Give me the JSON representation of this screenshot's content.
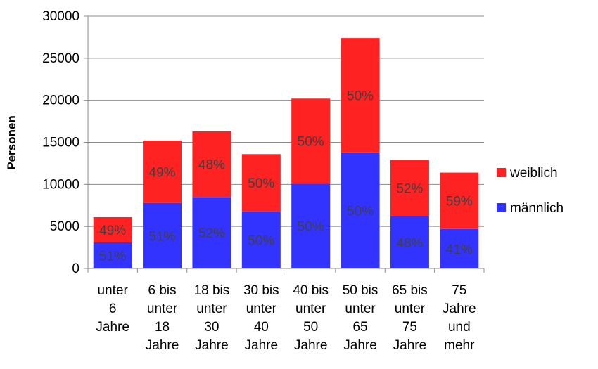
{
  "chart_data": {
    "type": "bar",
    "stacked": true,
    "ylabel": "Personen",
    "ylim": [
      0,
      30000
    ],
    "yticks": [
      0,
      5000,
      10000,
      15000,
      20000,
      25000,
      30000
    ],
    "grid": true,
    "legend_position": "right",
    "categories": [
      [
        "unter",
        "6",
        "Jahre"
      ],
      [
        "6 bis",
        "unter",
        "18",
        "Jahre"
      ],
      [
        "18 bis",
        "unter",
        "30",
        "Jahre"
      ],
      [
        "30 bis",
        "unter",
        "40",
        "Jahre"
      ],
      [
        "40 bis",
        "unter",
        "50",
        "Jahre"
      ],
      [
        "50 bis",
        "unter",
        "65",
        "Jahre"
      ],
      [
        "65 bis",
        "unter",
        "75",
        "Jahre"
      ],
      [
        "75",
        "Jahre",
        "und",
        "mehr"
      ]
    ],
    "series": [
      {
        "name": "männlich",
        "color": "#3333ff",
        "values": [
          3100,
          7800,
          8500,
          6800,
          10100,
          13800,
          6200,
          4700
        ],
        "labels": [
          "51%",
          "51%",
          "52%",
          "50%",
          "50%",
          "50%",
          "48%",
          "41%"
        ]
      },
      {
        "name": "weiblich",
        "color": "#ff2222",
        "values": [
          3000,
          7400,
          7800,
          6800,
          10100,
          13600,
          6700,
          6700
        ],
        "labels": [
          "49%",
          "49%",
          "48%",
          "50%",
          "50%",
          "50%",
          "52%",
          "59%"
        ]
      }
    ],
    "legend_order": [
      "weiblich",
      "männlich"
    ]
  }
}
